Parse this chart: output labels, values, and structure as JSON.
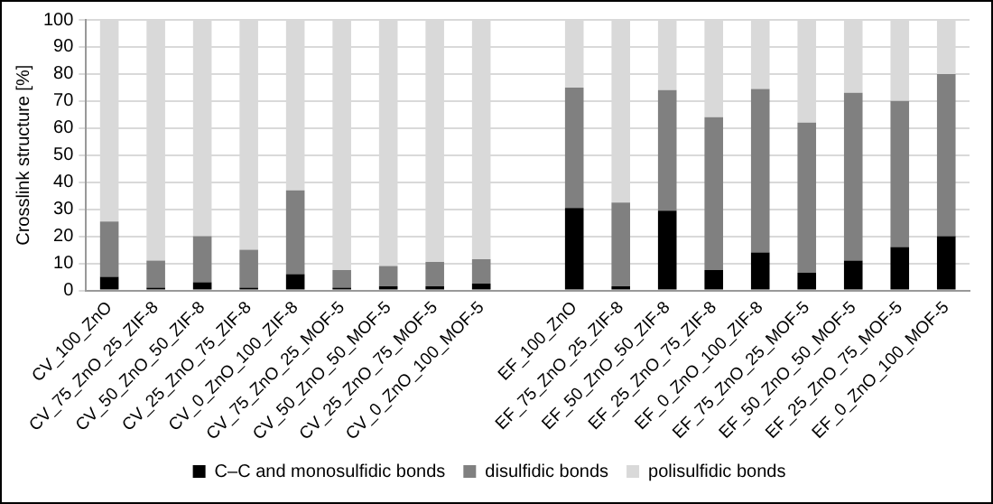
{
  "chart_data": {
    "type": "bar",
    "stacked": true,
    "ylabel": "Crosslink structure [%]",
    "categories": [
      "CV_100_ZnO",
      "CV_75_ZnO_25_ZIF-8",
      "CV_50_ZnO_50_ZIF-8",
      "CV_25_ZnO_75_ZIF-8",
      "CV_0_ZnO_100_ZIF-8",
      "CV_75_ZnO_25_MOF-5",
      "CV_50_ZnO_50_MOF-5",
      "CV_25_ZnO_75_MOF-5",
      "CV_0_ZnO_100_MOF-5",
      null,
      "EF_100_ZnO",
      "EF_75_ZnO_25_ZIF-8",
      "EF_50_ZnO_50_ZIF-8",
      "EF_25_ZnO_75_ZIF-8",
      "EF_0_ZnO_100_ZIF-8",
      "EF_75_ZnO_25_MOF-5",
      "EF_50_ZnO_50_MOF-5",
      "EF_25_ZnO_75_MOF-5",
      "EF_0_ZnO_100_MOF-5"
    ],
    "series": [
      {
        "name": "C–C and monosulfidic bonds",
        "color": "#000000",
        "values": [
          5,
          1,
          3,
          1,
          6,
          1,
          1.5,
          1.5,
          2.5,
          null,
          30.5,
          1.5,
          29.5,
          7.5,
          14,
          6.5,
          11,
          16,
          20
        ]
      },
      {
        "name": "disulfidic bonds",
        "color": "#808080",
        "values": [
          20.5,
          10,
          17,
          14,
          31,
          6.5,
          7.5,
          9,
          9,
          null,
          44.5,
          31,
          44.5,
          56.5,
          60.5,
          55.5,
          62,
          54,
          60
        ]
      },
      {
        "name": "polisulfidic bonds",
        "color": "#d9d9d9",
        "values": [
          74.5,
          89,
          80,
          85,
          63,
          92.5,
          91,
          89.5,
          88.5,
          null,
          25,
          67.5,
          26,
          36,
          25.5,
          38,
          27,
          30,
          20
        ]
      }
    ],
    "ylim": [
      0,
      100
    ],
    "yticks": [
      0,
      10,
      20,
      30,
      40,
      50,
      60,
      70,
      80,
      90,
      100
    ],
    "grid": "y",
    "legend": "bottom"
  }
}
